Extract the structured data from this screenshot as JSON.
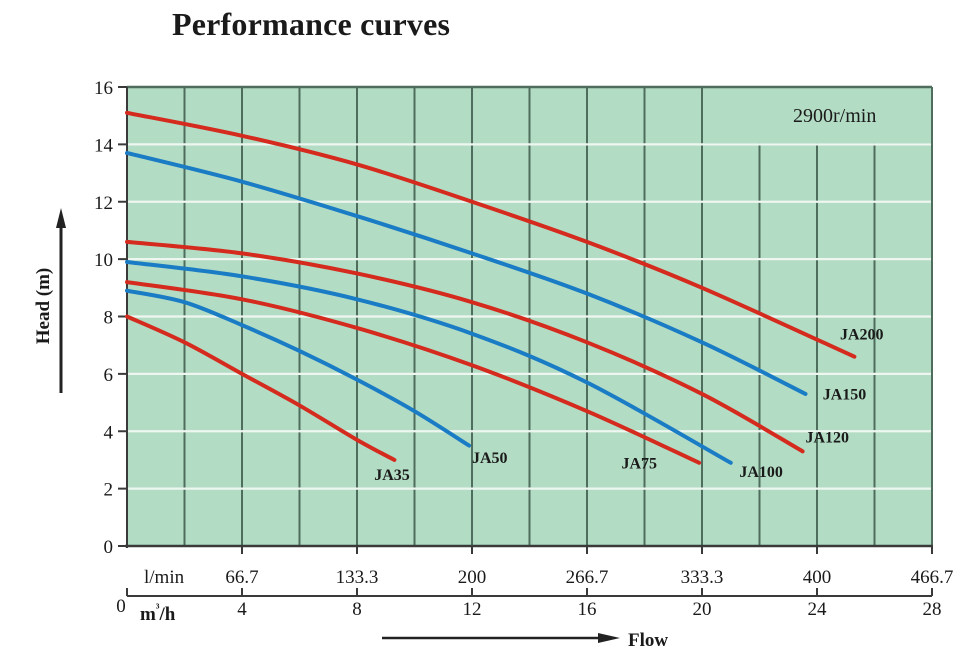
{
  "chart_data": {
    "type": "line",
    "title": "Performance curves",
    "annotation": "2900r/min",
    "xlabel": "Flow",
    "ylabel": "Head (m)",
    "x_unit_primary": "m³/h",
    "x_unit_secondary": "l/min",
    "xlim": [
      0,
      28
    ],
    "ylim": [
      0,
      16
    ],
    "grid": true,
    "y_ticks": [
      0,
      2,
      4,
      6,
      8,
      10,
      12,
      14,
      16
    ],
    "x_ticks_m3h": [
      {
        "value": 0,
        "label": "0"
      },
      {
        "value": 4,
        "label": "4"
      },
      {
        "value": 8,
        "label": "8"
      },
      {
        "value": 12,
        "label": "12"
      },
      {
        "value": 16,
        "label": "16"
      },
      {
        "value": 20,
        "label": "20"
      },
      {
        "value": 24,
        "label": "24"
      },
      {
        "value": 28,
        "label": "28"
      }
    ],
    "x_ticks_lmin": [
      {
        "value": 4,
        "label": "66.7"
      },
      {
        "value": 8,
        "label": "133.3"
      },
      {
        "value": 12,
        "label": "200"
      },
      {
        "value": 16,
        "label": "266.7"
      },
      {
        "value": 20,
        "label": "333.3"
      },
      {
        "value": 24,
        "label": "400"
      },
      {
        "value": 28,
        "label": "466.7"
      }
    ],
    "series": [
      {
        "name": "JA35",
        "color": "#d42b1e",
        "label_at": [
          8.6,
          2.3
        ],
        "x": [
          0,
          2,
          4,
          6,
          8,
          9.3
        ],
        "y": [
          8.0,
          7.1,
          6.0,
          4.9,
          3.7,
          3.0
        ]
      },
      {
        "name": "JA50",
        "color": "#1a7cc4",
        "label_at": [
          12.0,
          2.9
        ],
        "x": [
          0,
          2,
          4,
          6,
          8,
          10,
          11.9
        ],
        "y": [
          8.9,
          8.5,
          7.7,
          6.8,
          5.8,
          4.7,
          3.5
        ]
      },
      {
        "name": "JA75",
        "color": "#d42b1e",
        "label_at": [
          17.2,
          2.7
        ],
        "x": [
          0,
          4,
          8,
          12,
          16,
          19.9
        ],
        "y": [
          9.2,
          8.6,
          7.6,
          6.3,
          4.7,
          2.9
        ]
      },
      {
        "name": "JA100",
        "color": "#1a7cc4",
        "label_at": [
          21.3,
          2.4
        ],
        "x": [
          0,
          4,
          8,
          12,
          16,
          21.0
        ],
        "y": [
          9.9,
          9.4,
          8.6,
          7.4,
          5.7,
          2.9
        ]
      },
      {
        "name": "JA120",
        "color": "#d42b1e",
        "label_at": [
          23.6,
          3.6
        ],
        "x": [
          0,
          4,
          8,
          12,
          16,
          20,
          23.5
        ],
        "y": [
          10.6,
          10.2,
          9.5,
          8.5,
          7.1,
          5.3,
          3.3
        ]
      },
      {
        "name": "JA150",
        "color": "#1a7cc4",
        "label_at": [
          24.2,
          5.1
        ],
        "x": [
          0,
          4,
          8,
          12,
          16,
          20,
          23.6
        ],
        "y": [
          13.7,
          12.7,
          11.5,
          10.2,
          8.8,
          7.1,
          5.3
        ]
      },
      {
        "name": "JA200",
        "color": "#d42b1e",
        "label_at": [
          24.8,
          7.2
        ],
        "x": [
          0,
          4,
          8,
          12,
          16,
          20,
          25.3
        ],
        "y": [
          15.1,
          14.3,
          13.3,
          12.0,
          10.6,
          9.0,
          6.6
        ]
      }
    ]
  },
  "colors": {
    "plot_background": "#b3dcc4",
    "gridline_vertical": "#4e6d5c",
    "gridline_horizontal": "#eef6f0",
    "axis": "#3a3a3a"
  }
}
